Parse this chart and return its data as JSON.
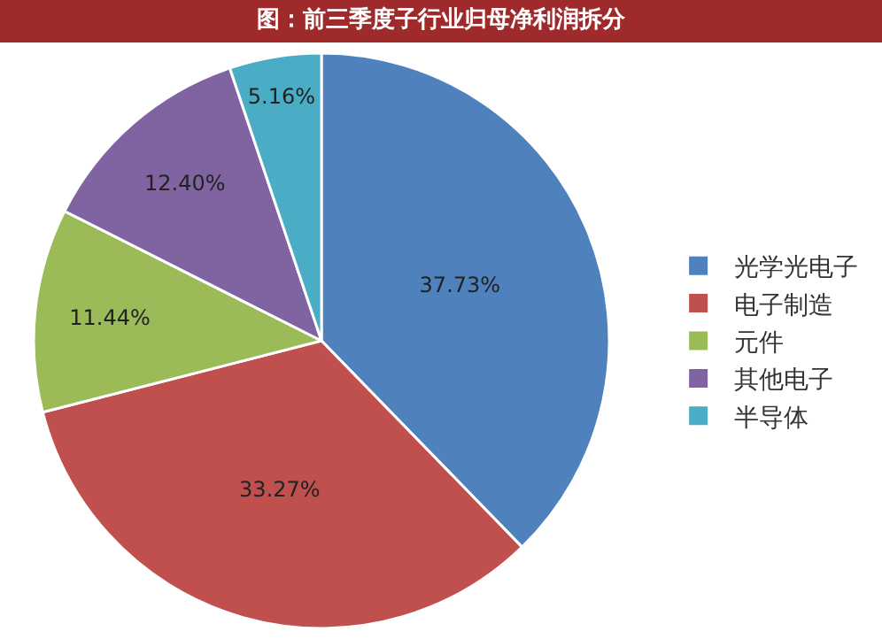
{
  "chart_data": {
    "type": "pie",
    "title": "图：前三季度子行业归母净利润拆分",
    "categories": [
      "光学光电子",
      "电子制造",
      "元件",
      "其他电子",
      "半导体"
    ],
    "values": [
      37.73,
      33.27,
      11.44,
      12.4,
      5.16
    ],
    "value_labels": [
      "37.73%",
      "33.27%",
      "11.44%",
      "12.40%",
      "5.16%"
    ],
    "colors": [
      "#4f81bd",
      "#c0504d",
      "#9bbb59",
      "#8064a2",
      "#4bacc6"
    ],
    "legend": "right"
  }
}
